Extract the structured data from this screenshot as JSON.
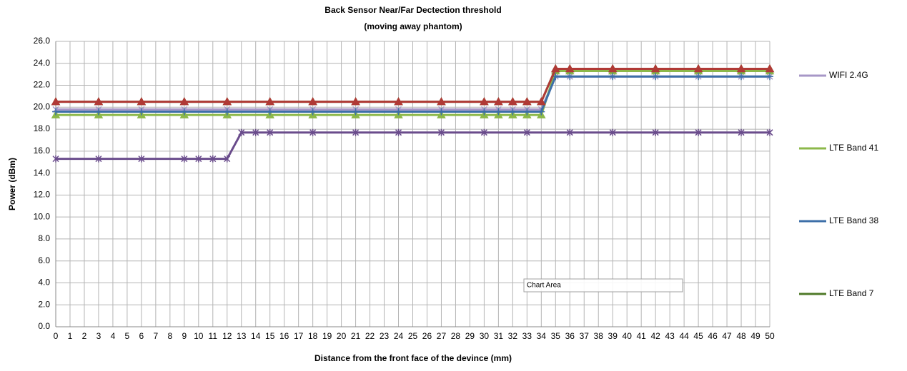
{
  "chart_data": {
    "type": "line",
    "title": "Back Sensor Near/Far Dectection threshold",
    "subtitle": "(moving away phantom)",
    "y_label": "Power (dBm)",
    "x_label": "Distance from the front face of the devince (mm)",
    "annotation": "Chart Area",
    "xlim": [
      0,
      50
    ],
    "xticks": [
      0,
      1,
      2,
      3,
      4,
      5,
      6,
      7,
      8,
      9,
      10,
      11,
      12,
      13,
      14,
      15,
      16,
      17,
      18,
      19,
      20,
      21,
      22,
      23,
      24,
      25,
      26,
      27,
      28,
      29,
      30,
      31,
      32,
      33,
      34,
      35,
      36,
      37,
      38,
      39,
      40,
      41,
      42,
      43,
      44,
      45,
      46,
      47,
      48,
      49,
      50
    ],
    "ylim": [
      0,
      26
    ],
    "yticks": [
      {
        "value": 0,
        "label": "0.0"
      },
      {
        "value": 2,
        "label": "2.0"
      },
      {
        "value": 4,
        "label": "4.0"
      },
      {
        "value": 6,
        "label": "6.0"
      },
      {
        "value": 8,
        "label": "8.0"
      },
      {
        "value": 10,
        "label": "10.0"
      },
      {
        "value": 12,
        "label": "12.0"
      },
      {
        "value": 14,
        "label": "14.0"
      },
      {
        "value": 16,
        "label": "16.0"
      },
      {
        "value": 18,
        "label": "18.0"
      },
      {
        "value": 20,
        "label": "20.0"
      },
      {
        "value": 22,
        "label": "22.0"
      },
      {
        "value": 24,
        "label": "24.0"
      },
      {
        "value": 26,
        "label": "26.0"
      }
    ],
    "grid": true,
    "legend": "right",
    "series": [
      {
        "name": "WIFI 2.4G",
        "color": "#a797c7",
        "marker": "x",
        "x": [
          0,
          3,
          6,
          9,
          12,
          15,
          18,
          21,
          24,
          27,
          30,
          31,
          32,
          33,
          34,
          35,
          36,
          39,
          42,
          45,
          48,
          50
        ],
        "values": [
          19.8,
          19.8,
          19.8,
          19.8,
          19.8,
          19.8,
          19.8,
          19.8,
          19.8,
          19.8,
          19.8,
          19.8,
          19.8,
          19.8,
          19.8,
          22.8,
          22.8,
          22.8,
          22.8,
          22.8,
          22.8,
          22.8
        ]
      },
      {
        "name": "LTE Band 41",
        "color": "#8cb84a",
        "marker": "triangle",
        "x": [
          0,
          3,
          6,
          9,
          12,
          15,
          18,
          21,
          24,
          27,
          30,
          31,
          32,
          33,
          34,
          35,
          36,
          39,
          42,
          45,
          48,
          50
        ],
        "values": [
          19.3,
          19.3,
          19.3,
          19.3,
          19.3,
          19.3,
          19.3,
          19.3,
          19.3,
          19.3,
          19.3,
          19.3,
          19.3,
          19.3,
          19.3,
          23.3,
          23.3,
          23.3,
          23.3,
          23.3,
          23.3,
          23.3
        ]
      },
      {
        "name": "LTE Band 38",
        "color": "#3d6fa8",
        "marker": "plus",
        "x": [
          0,
          3,
          6,
          9,
          12,
          15,
          18,
          21,
          24,
          27,
          30,
          31,
          32,
          33,
          34,
          35,
          36,
          39,
          42,
          45,
          48,
          50
        ],
        "values": [
          19.6,
          19.6,
          19.6,
          19.6,
          19.6,
          19.6,
          19.6,
          19.6,
          19.6,
          19.6,
          19.6,
          19.6,
          19.6,
          19.6,
          19.6,
          22.8,
          22.8,
          22.8,
          22.8,
          22.8,
          22.8,
          22.8
        ]
      },
      {
        "name": "LTE Band 7",
        "color": "#4f7a28",
        "marker": "triangle",
        "x": [
          0,
          3,
          6,
          9,
          12,
          15,
          18,
          21,
          24,
          27,
          30,
          31,
          32,
          33,
          34,
          35,
          36,
          39,
          42,
          45,
          48,
          50
        ],
        "values": [
          20.5,
          20.5,
          20.5,
          20.5,
          20.5,
          20.5,
          20.5,
          20.5,
          20.5,
          20.5,
          20.5,
          20.5,
          20.5,
          20.5,
          20.5,
          23.5,
          23.5,
          23.5,
          23.5,
          23.5,
          23.5,
          23.5
        ]
      },
      {
        "color": "#b03a36",
        "marker": "triangle",
        "x": [
          0,
          3,
          6,
          9,
          12,
          15,
          18,
          21,
          24,
          27,
          30,
          31,
          32,
          33,
          34,
          35,
          36,
          39,
          42,
          45,
          48,
          50
        ],
        "values": [
          20.5,
          20.5,
          20.5,
          20.5,
          20.5,
          20.5,
          20.5,
          20.5,
          20.5,
          20.5,
          20.5,
          20.5,
          20.5,
          20.5,
          20.5,
          23.5,
          23.5,
          23.5,
          23.5,
          23.5,
          23.5,
          23.5
        ]
      },
      {
        "color": "#6a4c8c",
        "marker": "star",
        "x": [
          0,
          3,
          6,
          9,
          10,
          11,
          12,
          13,
          14,
          15,
          18,
          21,
          24,
          27,
          30,
          33,
          36,
          39,
          42,
          45,
          48,
          50
        ],
        "values": [
          15.3,
          15.3,
          15.3,
          15.3,
          15.3,
          15.3,
          15.3,
          17.7,
          17.7,
          17.7,
          17.7,
          17.7,
          17.7,
          17.7,
          17.7,
          17.7,
          17.7,
          17.7,
          17.7,
          17.7,
          17.7,
          17.7
        ]
      }
    ]
  }
}
